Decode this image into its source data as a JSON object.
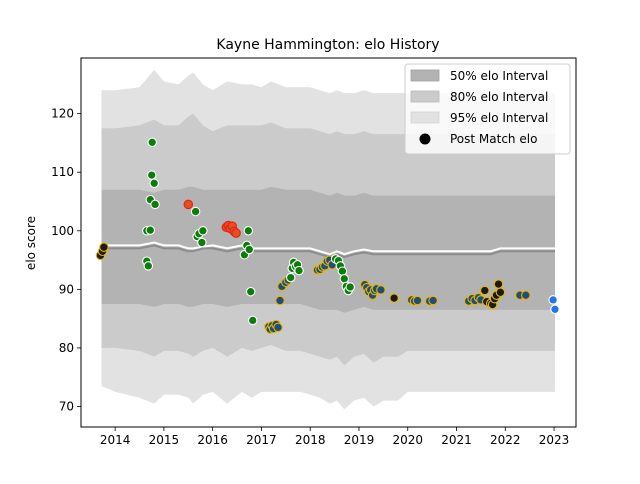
{
  "colors": {
    "band50": "#b3b3b3",
    "band80": "#cbcbcb",
    "band95": "#e2e2e2",
    "median": "#8c8c8c",
    "mean": "#ffffff",
    "fill_green": "#0a7d0a",
    "fill_navy": "#1f4e79",
    "fill_dark": "#1a1a1a",
    "fill_orange": "#e8501a",
    "fill_blue": "#1f77e6",
    "edge_white": "#ffffff",
    "edge_gold": "#e8b400",
    "edge_red": "#e02020"
  },
  "chart_data": {
    "type": "area",
    "title": "Kayne Hammington: elo History",
    "xlabel": "",
    "ylabel": "elo score",
    "xlim": [
      2013.3,
      2023.45
    ],
    "ylim": [
      66.5,
      129.5
    ],
    "xticks": [
      2014,
      2015,
      2016,
      2017,
      2018,
      2019,
      2020,
      2021,
      2022,
      2023
    ],
    "yticks": [
      70,
      80,
      90,
      100,
      110,
      120
    ],
    "grid": false,
    "legend_position": "top-right",
    "legend": [
      {
        "label": "50% elo Interval",
        "kind": "band50"
      },
      {
        "label": "80% elo Interval",
        "kind": "band80"
      },
      {
        "label": "95% elo Interval",
        "kind": "band95"
      },
      {
        "label": "Post Match elo",
        "kind": "marker"
      }
    ],
    "band_x": [
      2013.72,
      2014.0,
      2014.5,
      2014.8,
      2015.0,
      2015.3,
      2015.5,
      2015.6,
      2015.8,
      2016.0,
      2016.3,
      2016.6,
      2016.8,
      2017.0,
      2017.2,
      2017.5,
      2017.8,
      2018.0,
      2018.2,
      2018.4,
      2018.55,
      2018.7,
      2018.9,
      2019.1,
      2019.3,
      2019.5,
      2019.8,
      2020.0,
      2020.5,
      2021.0,
      2021.3,
      2021.5,
      2021.7,
      2021.9,
      2022.2,
      2022.6,
      2023.02
    ],
    "band95_upper": [
      124,
      124,
      124.5,
      127.5,
      125.5,
      125,
      126.5,
      127,
      125,
      124,
      125.5,
      125,
      125,
      124.5,
      125.5,
      124.5,
      124.5,
      124.5,
      124,
      123.5,
      124,
      123.5,
      123.5,
      124,
      123.5,
      123.5,
      123.5,
      123.5,
      123.5,
      123.5,
      123.5,
      123.5,
      123.5,
      123.5,
      123.5,
      123.5,
      123.5
    ],
    "band95_lower": [
      73.5,
      72.5,
      71.5,
      70.5,
      72,
      72,
      71.5,
      70.5,
      72,
      72.5,
      70.5,
      72.5,
      71.5,
      72.5,
      72.5,
      72.5,
      72.5,
      72,
      71.5,
      70.5,
      71,
      69.5,
      71,
      71.5,
      70,
      71,
      71,
      72.5,
      72.5,
      72.5,
      72.5,
      72.5,
      72.5,
      72.5,
      72.5,
      72.5,
      72.5
    ],
    "band80_upper": [
      117.5,
      117.5,
      118,
      119,
      118,
      118,
      119.5,
      120,
      118,
      117,
      118,
      118,
      118,
      118,
      118.5,
      117.5,
      117.5,
      117.5,
      117,
      116.5,
      117,
      116.5,
      116.5,
      117,
      116.5,
      116.5,
      116.5,
      116.5,
      116.5,
      116.5,
      116.5,
      116.5,
      116.5,
      116.5,
      116.5,
      116.5,
      116.5
    ],
    "band80_lower": [
      80,
      80,
      79.5,
      78.5,
      79.5,
      79.5,
      79,
      78.5,
      79.5,
      80,
      78.5,
      80,
      79.5,
      80,
      80.5,
      79.5,
      79.5,
      79,
      78.5,
      78,
      78.5,
      77,
      78.5,
      79,
      77.5,
      78.5,
      78.5,
      79.5,
      79.5,
      79.5,
      79.5,
      79.5,
      79.5,
      79.5,
      79.5,
      79.5,
      79.5
    ],
    "band50_upper": [
      107,
      107,
      107,
      106.5,
      107,
      107,
      107.5,
      107.5,
      107,
      107,
      107,
      107,
      107,
      107,
      107.5,
      107,
      107,
      107,
      106.5,
      106,
      106.5,
      106,
      106,
      106.5,
      106,
      106,
      106,
      106,
      106,
      106,
      106,
      106,
      106,
      106,
      106,
      106,
      106
    ],
    "band50_lower": [
      87.5,
      87.5,
      87.5,
      87,
      87.5,
      87.5,
      87,
      87,
      87.5,
      87.5,
      87,
      87.5,
      87.5,
      87.5,
      87.5,
      87.5,
      87.5,
      87,
      86.5,
      86.5,
      86.5,
      86,
      86.5,
      87,
      86.5,
      86.5,
      86.5,
      86.5,
      86.5,
      86.5,
      86.5,
      86.5,
      86.5,
      86.5,
      86.5,
      86.5,
      86.5
    ],
    "median_line": [
      97,
      97,
      97,
      97.5,
      97,
      97,
      96.5,
      96.5,
      97,
      97,
      96.5,
      97,
      96.5,
      96.5,
      96.5,
      96.5,
      96.5,
      96.5,
      96,
      95.5,
      96,
      95.5,
      96,
      96.3,
      96,
      96,
      96,
      96,
      96,
      96,
      96,
      96,
      96,
      96.5,
      96.5,
      96.5,
      96.5
    ],
    "mean_line": [
      97.5,
      97.5,
      97.5,
      98,
      97.5,
      97.5,
      97,
      97,
      97.3,
      97.5,
      97,
      97.5,
      97,
      97,
      97,
      97,
      97,
      97,
      96.5,
      96,
      96.5,
      96,
      96.5,
      96.8,
      96.5,
      96.5,
      96.5,
      96.5,
      96.5,
      96.5,
      96.5,
      96.5,
      96.5,
      97,
      97,
      97,
      97
    ],
    "points": [
      {
        "x": 2013.7,
        "y": 95.8,
        "fill": "fill_dark",
        "edge": "edge_gold"
      },
      {
        "x": 2013.74,
        "y": 96.5,
        "fill": "fill_dark",
        "edge": "edge_gold"
      },
      {
        "x": 2013.77,
        "y": 97.2,
        "fill": "fill_dark",
        "edge": "edge_gold"
      },
      {
        "x": 2014.65,
        "y": 100.0,
        "fill": "fill_green",
        "edge": "edge_white"
      },
      {
        "x": 2014.72,
        "y": 100.1,
        "fill": "fill_green",
        "edge": "edge_white"
      },
      {
        "x": 2014.65,
        "y": 94.8,
        "fill": "fill_green",
        "edge": "edge_white"
      },
      {
        "x": 2014.68,
        "y": 94.0,
        "fill": "fill_green",
        "edge": "edge_white"
      },
      {
        "x": 2014.72,
        "y": 105.3,
        "fill": "fill_green",
        "edge": "edge_white"
      },
      {
        "x": 2014.75,
        "y": 109.5,
        "fill": "fill_green",
        "edge": "edge_white"
      },
      {
        "x": 2014.76,
        "y": 115.1,
        "fill": "fill_green",
        "edge": "edge_white"
      },
      {
        "x": 2014.8,
        "y": 108.1,
        "fill": "fill_green",
        "edge": "edge_white"
      },
      {
        "x": 2014.82,
        "y": 104.5,
        "fill": "fill_green",
        "edge": "edge_white"
      },
      {
        "x": 2015.5,
        "y": 104.5,
        "fill": "fill_orange",
        "edge": "edge_red"
      },
      {
        "x": 2015.65,
        "y": 103.3,
        "fill": "fill_green",
        "edge": "edge_white"
      },
      {
        "x": 2015.68,
        "y": 99.0,
        "fill": "fill_green",
        "edge": "edge_white"
      },
      {
        "x": 2015.72,
        "y": 99.5,
        "fill": "fill_green",
        "edge": "edge_white"
      },
      {
        "x": 2015.78,
        "y": 98.0,
        "fill": "fill_green",
        "edge": "edge_white"
      },
      {
        "x": 2015.8,
        "y": 100.0,
        "fill": "fill_green",
        "edge": "edge_white"
      },
      {
        "x": 2016.28,
        "y": 100.6,
        "fill": "fill_orange",
        "edge": "edge_red"
      },
      {
        "x": 2016.32,
        "y": 100.9,
        "fill": "fill_orange",
        "edge": "edge_red"
      },
      {
        "x": 2016.36,
        "y": 100.4,
        "fill": "fill_orange",
        "edge": "edge_red"
      },
      {
        "x": 2016.4,
        "y": 100.8,
        "fill": "fill_orange",
        "edge": "edge_red"
      },
      {
        "x": 2016.44,
        "y": 99.9,
        "fill": "fill_orange",
        "edge": "edge_red"
      },
      {
        "x": 2016.48,
        "y": 99.6,
        "fill": "fill_orange",
        "edge": "edge_red"
      },
      {
        "x": 2016.65,
        "y": 95.9,
        "fill": "fill_green",
        "edge": "edge_white"
      },
      {
        "x": 2016.7,
        "y": 97.5,
        "fill": "fill_green",
        "edge": "edge_white"
      },
      {
        "x": 2016.73,
        "y": 100.0,
        "fill": "fill_green",
        "edge": "edge_white"
      },
      {
        "x": 2016.75,
        "y": 96.8,
        "fill": "fill_green",
        "edge": "edge_white"
      },
      {
        "x": 2016.78,
        "y": 89.6,
        "fill": "fill_green",
        "edge": "edge_white"
      },
      {
        "x": 2016.82,
        "y": 84.7,
        "fill": "fill_green",
        "edge": "edge_white"
      },
      {
        "x": 2017.15,
        "y": 83.6,
        "fill": "fill_navy",
        "edge": "edge_gold"
      },
      {
        "x": 2017.18,
        "y": 83.2,
        "fill": "fill_navy",
        "edge": "edge_gold"
      },
      {
        "x": 2017.22,
        "y": 83.8,
        "fill": "fill_navy",
        "edge": "edge_gold"
      },
      {
        "x": 2017.25,
        "y": 83.3,
        "fill": "fill_navy",
        "edge": "edge_gold"
      },
      {
        "x": 2017.3,
        "y": 84.0,
        "fill": "fill_navy",
        "edge": "edge_gold"
      },
      {
        "x": 2017.34,
        "y": 83.5,
        "fill": "fill_navy",
        "edge": "edge_gold"
      },
      {
        "x": 2017.38,
        "y": 88.1,
        "fill": "fill_navy",
        "edge": "edge_gold"
      },
      {
        "x": 2017.42,
        "y": 90.5,
        "fill": "fill_navy",
        "edge": "edge_gold"
      },
      {
        "x": 2017.5,
        "y": 91.2,
        "fill": "fill_navy",
        "edge": "edge_gold"
      },
      {
        "x": 2017.55,
        "y": 91.6,
        "fill": "fill_navy",
        "edge": "edge_gold"
      },
      {
        "x": 2017.6,
        "y": 92.0,
        "fill": "fill_green",
        "edge": "edge_white"
      },
      {
        "x": 2017.63,
        "y": 93.6,
        "fill": "fill_green",
        "edge": "edge_white"
      },
      {
        "x": 2017.66,
        "y": 94.6,
        "fill": "fill_green",
        "edge": "edge_white"
      },
      {
        "x": 2017.7,
        "y": 93.9,
        "fill": "fill_green",
        "edge": "edge_white"
      },
      {
        "x": 2017.74,
        "y": 94.2,
        "fill": "fill_green",
        "edge": "edge_white"
      },
      {
        "x": 2017.77,
        "y": 93.2,
        "fill": "fill_green",
        "edge": "edge_white"
      },
      {
        "x": 2018.15,
        "y": 93.3,
        "fill": "fill_navy",
        "edge": "edge_gold"
      },
      {
        "x": 2018.2,
        "y": 93.4,
        "fill": "fill_navy",
        "edge": "edge_gold"
      },
      {
        "x": 2018.25,
        "y": 93.8,
        "fill": "fill_navy",
        "edge": "edge_gold"
      },
      {
        "x": 2018.3,
        "y": 94.0,
        "fill": "fill_navy",
        "edge": "edge_gold"
      },
      {
        "x": 2018.35,
        "y": 94.8,
        "fill": "fill_navy",
        "edge": "edge_gold"
      },
      {
        "x": 2018.4,
        "y": 95.0,
        "fill": "fill_navy",
        "edge": "edge_gold"
      },
      {
        "x": 2018.45,
        "y": 94.2,
        "fill": "fill_navy",
        "edge": "edge_gold"
      },
      {
        "x": 2018.52,
        "y": 95.2,
        "fill": "fill_green",
        "edge": "edge_white"
      },
      {
        "x": 2018.58,
        "y": 94.9,
        "fill": "fill_green",
        "edge": "edge_white"
      },
      {
        "x": 2018.62,
        "y": 94.0,
        "fill": "fill_green",
        "edge": "edge_white"
      },
      {
        "x": 2018.66,
        "y": 93.1,
        "fill": "fill_green",
        "edge": "edge_white"
      },
      {
        "x": 2018.7,
        "y": 91.8,
        "fill": "fill_green",
        "edge": "edge_white"
      },
      {
        "x": 2018.74,
        "y": 90.5,
        "fill": "fill_green",
        "edge": "edge_white"
      },
      {
        "x": 2018.78,
        "y": 89.8,
        "fill": "fill_green",
        "edge": "edge_white"
      },
      {
        "x": 2018.82,
        "y": 90.4,
        "fill": "fill_green",
        "edge": "edge_white"
      },
      {
        "x": 2019.12,
        "y": 90.8,
        "fill": "fill_navy",
        "edge": "edge_gold"
      },
      {
        "x": 2019.16,
        "y": 90.3,
        "fill": "fill_navy",
        "edge": "edge_gold"
      },
      {
        "x": 2019.2,
        "y": 89.6,
        "fill": "fill_navy",
        "edge": "edge_gold"
      },
      {
        "x": 2019.24,
        "y": 89.9,
        "fill": "fill_navy",
        "edge": "edge_gold"
      },
      {
        "x": 2019.28,
        "y": 89.0,
        "fill": "fill_navy",
        "edge": "edge_gold"
      },
      {
        "x": 2019.32,
        "y": 89.8,
        "fill": "fill_navy",
        "edge": "edge_gold"
      },
      {
        "x": 2019.36,
        "y": 90.1,
        "fill": "fill_navy",
        "edge": "edge_gold"
      },
      {
        "x": 2019.45,
        "y": 89.9,
        "fill": "fill_navy",
        "edge": "edge_gold"
      },
      {
        "x": 2019.72,
        "y": 88.5,
        "fill": "fill_dark",
        "edge": "edge_gold"
      },
      {
        "x": 2020.08,
        "y": 88.2,
        "fill": "fill_navy",
        "edge": "edge_gold"
      },
      {
        "x": 2020.14,
        "y": 88.0,
        "fill": "fill_navy",
        "edge": "edge_gold"
      },
      {
        "x": 2020.2,
        "y": 88.1,
        "fill": "fill_navy",
        "edge": "edge_gold"
      },
      {
        "x": 2020.45,
        "y": 88.0,
        "fill": "fill_navy",
        "edge": "edge_gold"
      },
      {
        "x": 2020.52,
        "y": 88.1,
        "fill": "fill_navy",
        "edge": "edge_gold"
      },
      {
        "x": 2021.25,
        "y": 88.0,
        "fill": "fill_navy",
        "edge": "edge_gold"
      },
      {
        "x": 2021.32,
        "y": 88.4,
        "fill": "fill_navy",
        "edge": "edge_gold"
      },
      {
        "x": 2021.38,
        "y": 88.1,
        "fill": "fill_navy",
        "edge": "edge_gold"
      },
      {
        "x": 2021.45,
        "y": 88.6,
        "fill": "fill_navy",
        "edge": "edge_gold"
      },
      {
        "x": 2021.5,
        "y": 88.2,
        "fill": "fill_navy",
        "edge": "edge_gold"
      },
      {
        "x": 2021.58,
        "y": 89.8,
        "fill": "fill_dark",
        "edge": "edge_gold"
      },
      {
        "x": 2021.62,
        "y": 87.9,
        "fill": "fill_dark",
        "edge": "edge_gold"
      },
      {
        "x": 2021.7,
        "y": 87.6,
        "fill": "fill_dark",
        "edge": "edge_gold"
      },
      {
        "x": 2021.74,
        "y": 87.4,
        "fill": "fill_dark",
        "edge": "edge_gold"
      },
      {
        "x": 2021.78,
        "y": 88.4,
        "fill": "fill_dark",
        "edge": "edge_gold"
      },
      {
        "x": 2021.82,
        "y": 89.0,
        "fill": "fill_dark",
        "edge": "edge_gold"
      },
      {
        "x": 2021.86,
        "y": 90.9,
        "fill": "fill_dark",
        "edge": "edge_gold"
      },
      {
        "x": 2021.9,
        "y": 89.5,
        "fill": "fill_dark",
        "edge": "edge_gold"
      },
      {
        "x": 2022.3,
        "y": 89.0,
        "fill": "fill_navy",
        "edge": "edge_gold"
      },
      {
        "x": 2022.42,
        "y": 89.0,
        "fill": "fill_navy",
        "edge": "edge_gold"
      },
      {
        "x": 2022.98,
        "y": 88.2,
        "fill": "fill_blue",
        "edge": "edge_white"
      },
      {
        "x": 2023.02,
        "y": 86.6,
        "fill": "fill_blue",
        "edge": "edge_white"
      }
    ]
  }
}
